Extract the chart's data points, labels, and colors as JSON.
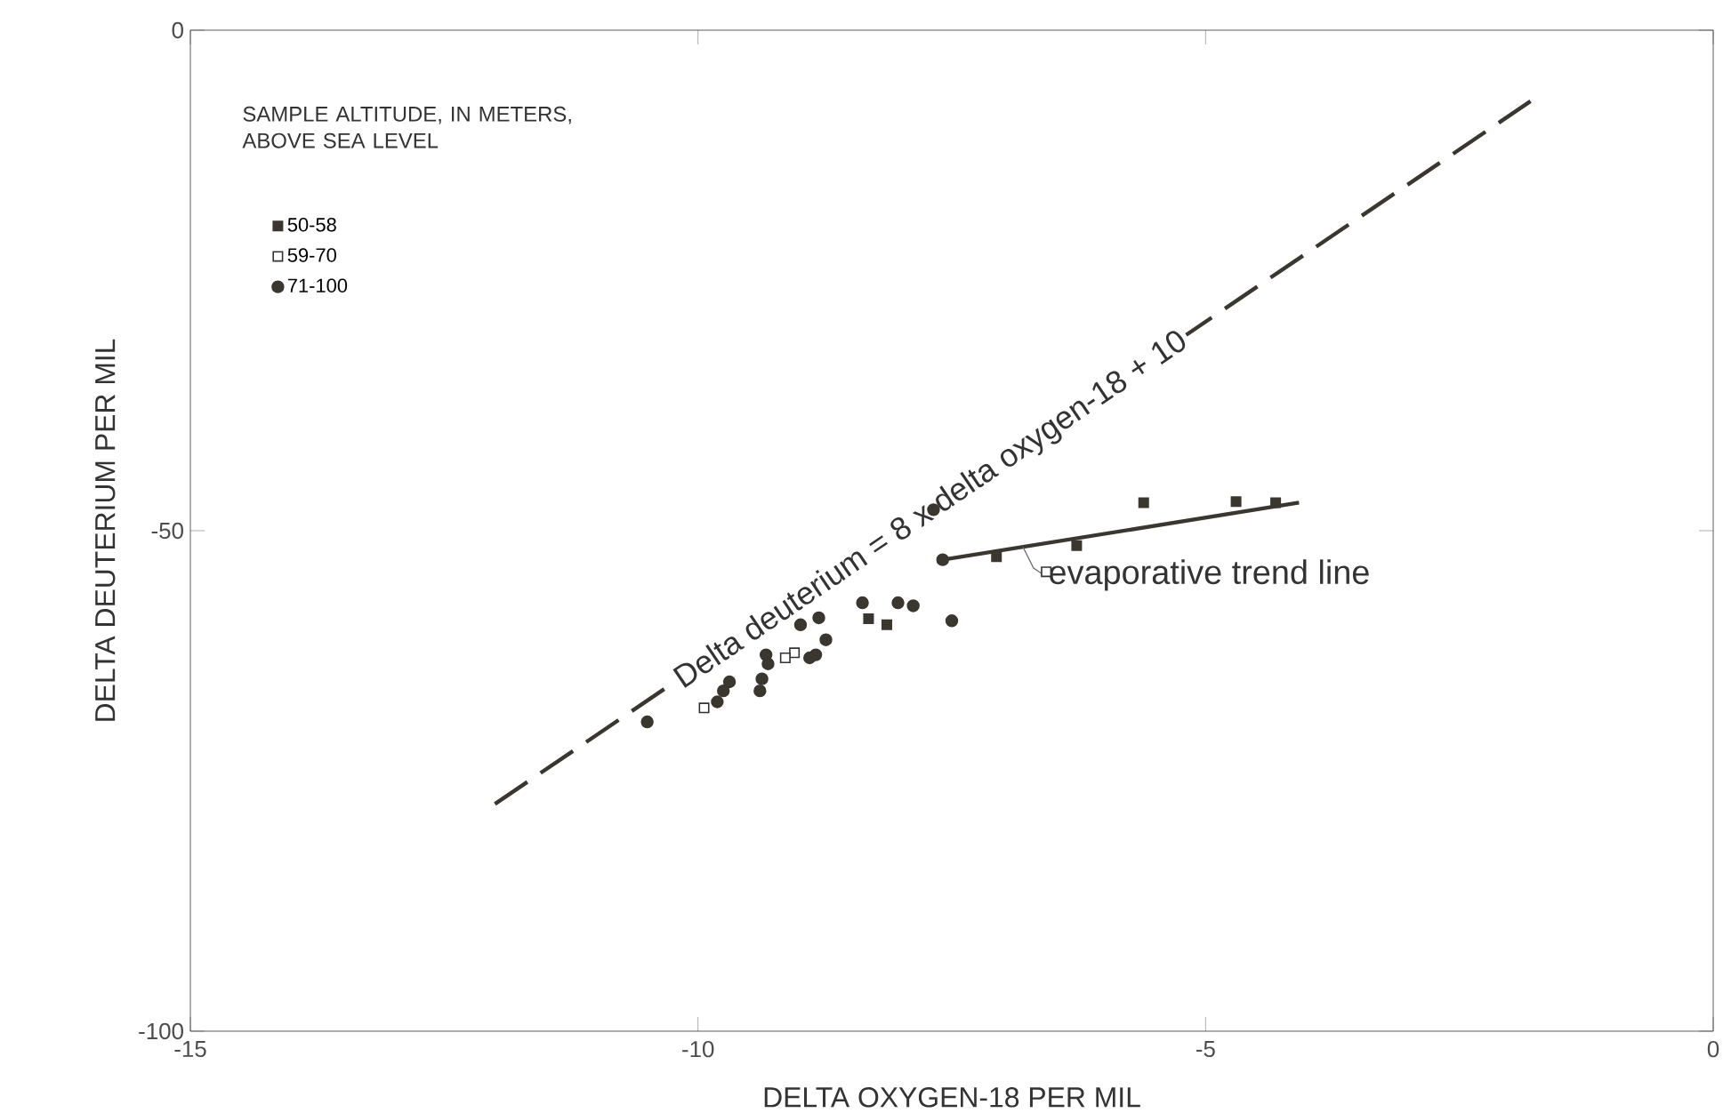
{
  "chart_data": {
    "type": "scatter",
    "xlabel": "DELTA OXYGEN-18 PER MIL",
    "ylabel": "DELTA DEUTERIUM PER MIL",
    "legend_title": "SAMPLE ALTITUDE, IN METERS, ABOVE SEA LEVEL",
    "xlim": [
      -15,
      0
    ],
    "ylim": [
      -100,
      0
    ],
    "xticks": [
      -15,
      -10,
      -5,
      0
    ],
    "yticks": [
      -100,
      -50,
      0
    ],
    "grid": false,
    "legend": "top left",
    "series": [
      {
        "name": "50-58",
        "color": "#3a3630",
        "marker": "square",
        "x": [
          -8.32,
          -8.14,
          -7.06,
          -6.27,
          -5.61,
          -4.7,
          -4.31
        ],
        "values": [
          -58.8,
          -59.4,
          -52.6,
          -51.5,
          -47.2,
          -47.1,
          -47.2
        ]
      },
      {
        "name": "59-70",
        "color": "#ffffff",
        "marker": "square",
        "x": [
          -6.57,
          -9.05,
          -9.14,
          -9.94
        ],
        "values": [
          -54.1,
          -62.2,
          -62.7,
          -67.7
        ]
      },
      {
        "name": "71-100",
        "color": "#3a3630",
        "marker": "circle",
        "x": [
          -7.68,
          -7.59,
          -7.5,
          -7.88,
          -8.03,
          -8.38,
          -8.81,
          -8.99,
          -8.74,
          -8.84,
          -8.9,
          -9.33,
          -9.31,
          -9.37,
          -9.39,
          -9.69,
          -9.75,
          -9.81,
          -10.5
        ],
        "values": [
          -47.9,
          -52.9,
          -59.0,
          -57.5,
          -57.2,
          -57.2,
          -58.7,
          -59.4,
          -60.9,
          -62.4,
          -62.7,
          -62.4,
          -63.3,
          -64.8,
          -66.0,
          -65.1,
          -66.0,
          -67.1,
          -69.1
        ]
      },
      {
        "type": "line",
        "color": "#3a3630",
        "line_style": "solid",
        "x": [
          -7.59,
          -4.08
        ],
        "values": [
          -52.9,
          -47.2
        ]
      },
      {
        "type": "line",
        "color": "#3a3630",
        "line_style": "dashed",
        "x": [
          -12,
          -1.8
        ],
        "values": [
          -77.3,
          -7.1
        ]
      }
    ],
    "annotations": [
      {
        "text": "Delta deuterium = 8 x delta oxygen-18 + 10",
        "x": -7.7,
        "y": -48
      },
      {
        "text": "evaporative trend line",
        "x": -6.8,
        "y": -51.6
      }
    ]
  }
}
